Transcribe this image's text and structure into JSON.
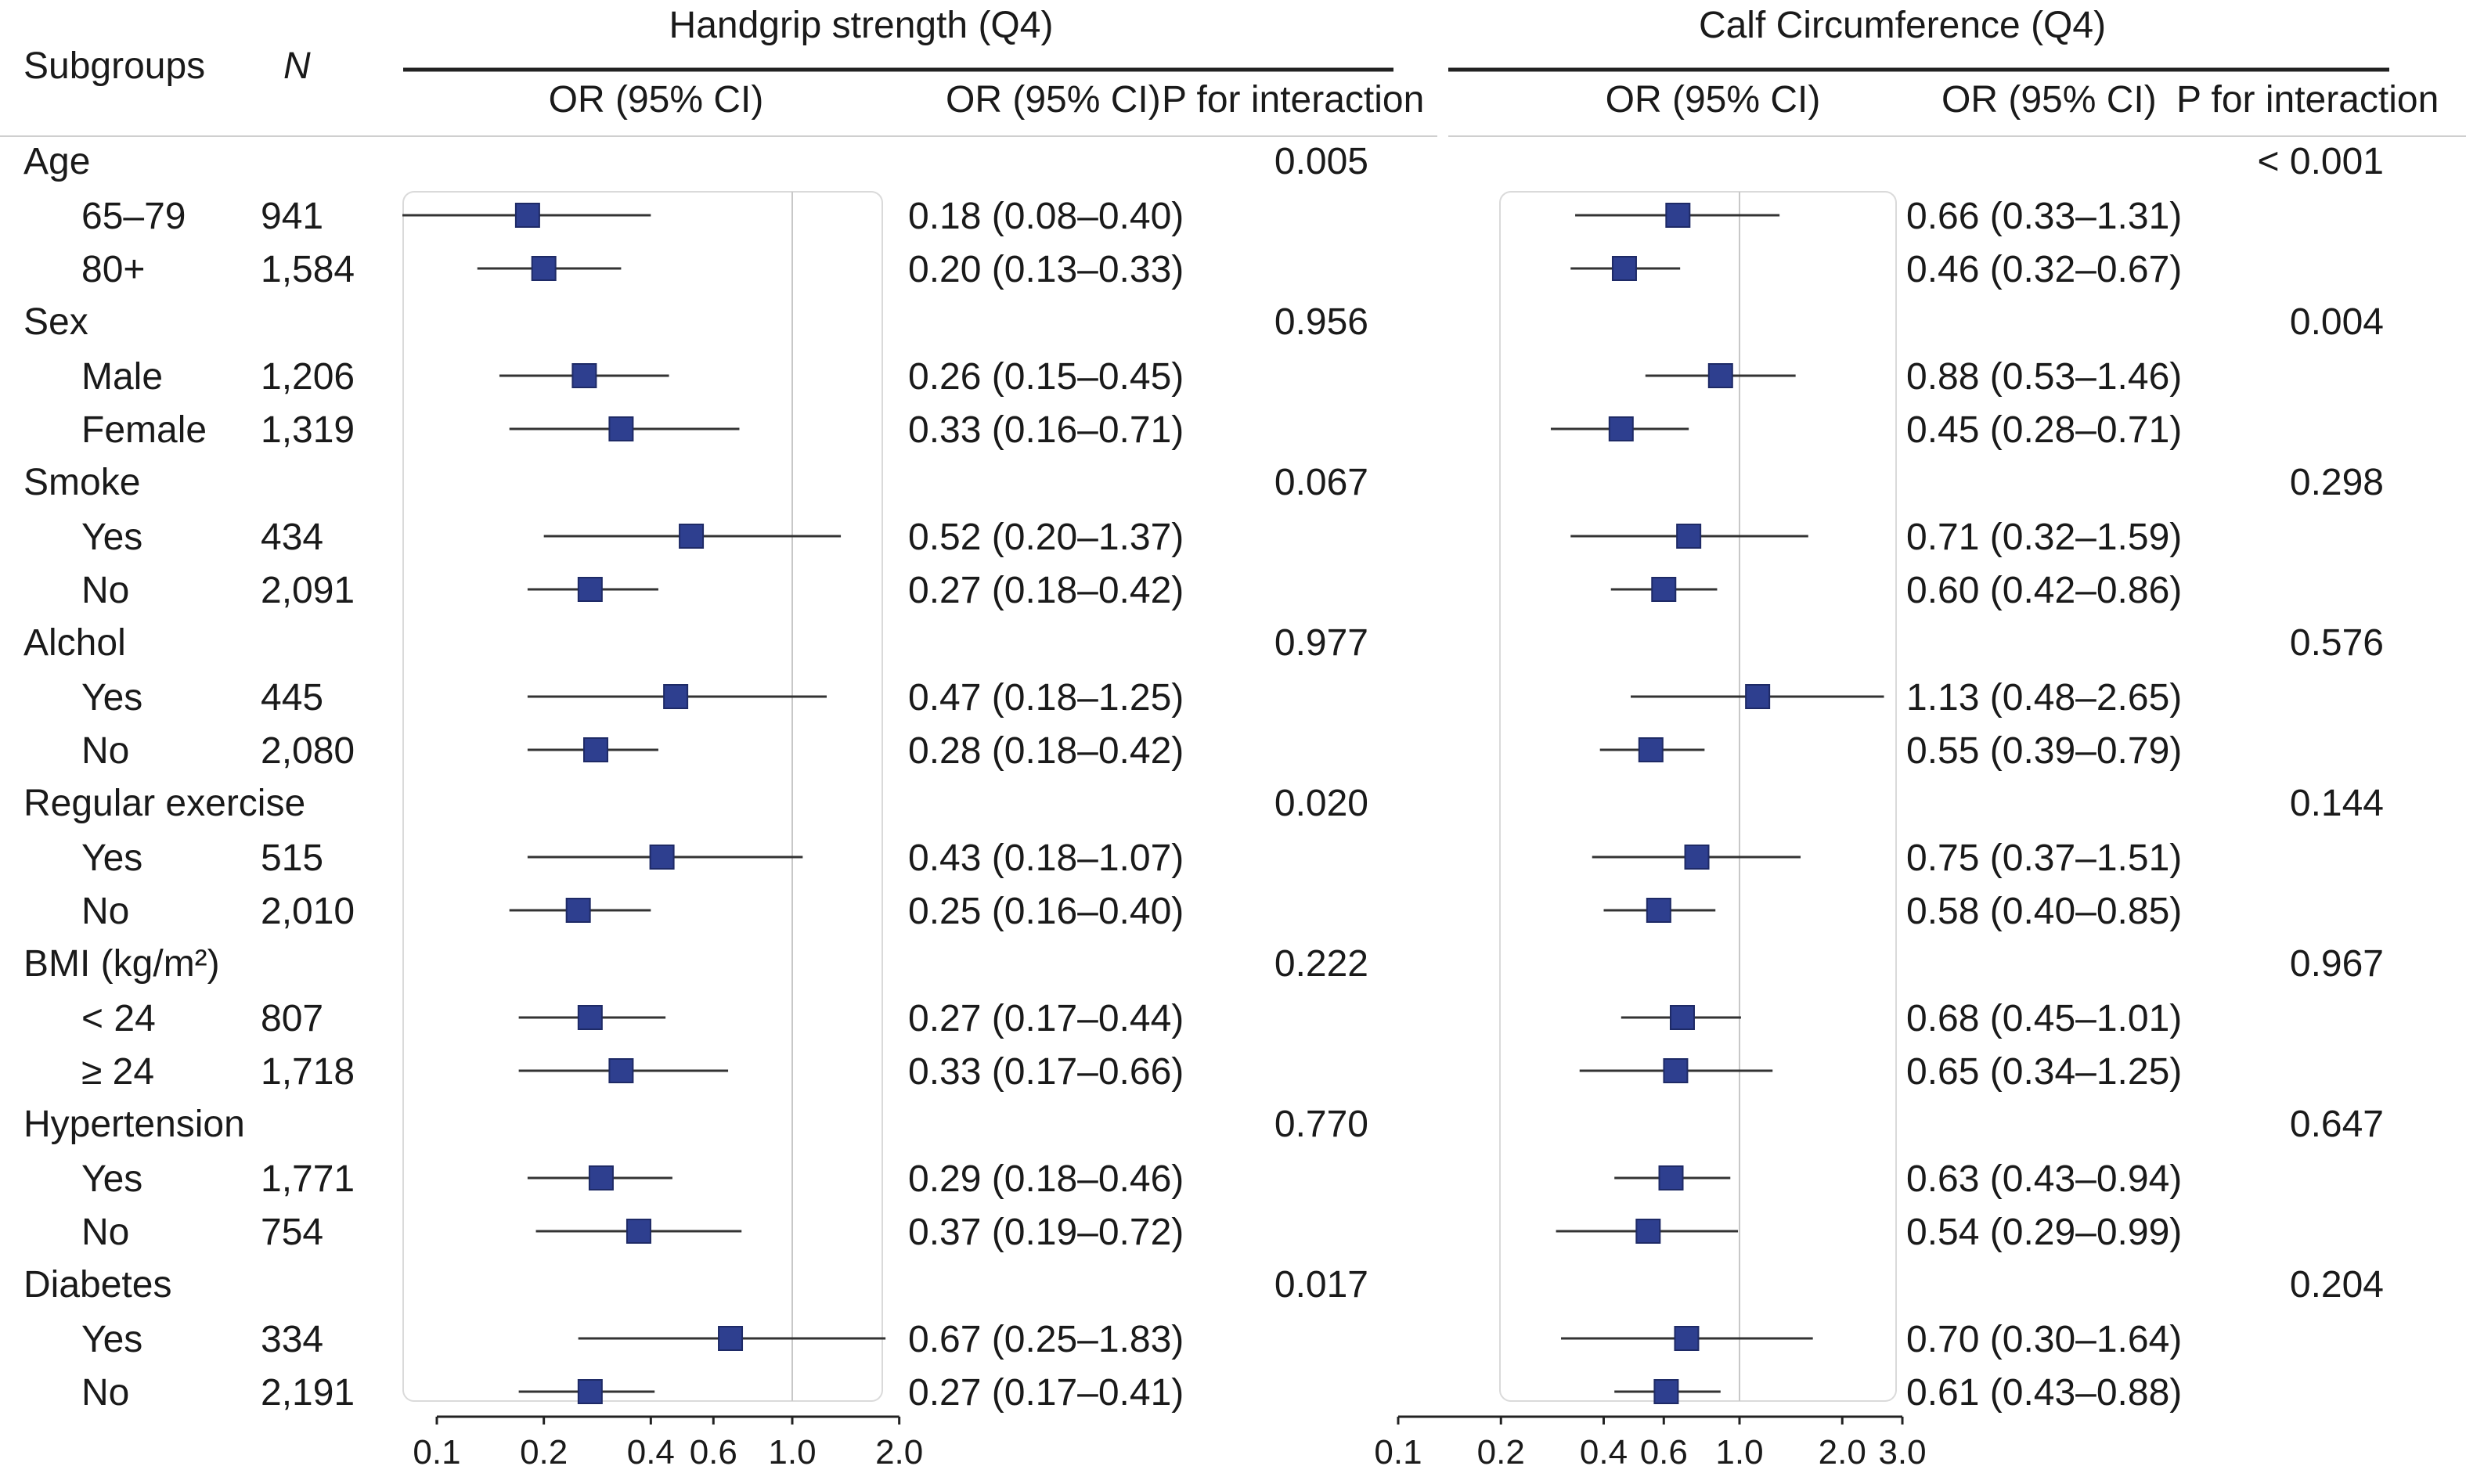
{
  "header": {
    "subgroups": "Subgroups",
    "n": "N",
    "panel_titles": [
      "Handgrip strength (Q4)",
      "Calf Circumference (Q4)"
    ],
    "or_ci_label": "OR (95% CI)",
    "p_label": "P for interaction"
  },
  "chart_data": [
    {
      "type": "forest",
      "title": "Handgrip strength (Q4)",
      "x_scale": "log",
      "reference_line": 1.0,
      "xticks": [
        0.1,
        0.2,
        0.4,
        0.6,
        1.0,
        2.0
      ],
      "xtick_labels": [
        "0.1",
        "0.2",
        "0.4",
        "0.6",
        "1.0",
        "2.0"
      ],
      "xlim": [
        0.09,
        2.0
      ],
      "marker_color": "#2e3f8f",
      "groups": [
        {
          "label": "Age",
          "p_interaction": "0.005",
          "subgroups": [
            {
              "label": "65–79",
              "n": "941",
              "or": 0.18,
              "lo": 0.08,
              "hi": 0.4,
              "text": "0.18 (0.08–0.40)"
            },
            {
              "label": "80+",
              "n": "1,584",
              "or": 0.2,
              "lo": 0.13,
              "hi": 0.33,
              "text": "0.20 (0.13–0.33)"
            }
          ]
        },
        {
          "label": "Sex",
          "p_interaction": "0.956",
          "subgroups": [
            {
              "label": "Male",
              "n": "1,206",
              "or": 0.26,
              "lo": 0.15,
              "hi": 0.45,
              "text": "0.26 (0.15–0.45)"
            },
            {
              "label": "Female",
              "n": "1,319",
              "or": 0.33,
              "lo": 0.16,
              "hi": 0.71,
              "text": "0.33 (0.16–0.71)"
            }
          ]
        },
        {
          "label": "Smoke",
          "p_interaction": "0.067",
          "subgroups": [
            {
              "label": "Yes",
              "n": "434",
              "or": 0.52,
              "lo": 0.2,
              "hi": 1.37,
              "text": "0.52 (0.20–1.37)"
            },
            {
              "label": "No",
              "n": "2,091",
              "or": 0.27,
              "lo": 0.18,
              "hi": 0.42,
              "text": "0.27 (0.18–0.42)"
            }
          ]
        },
        {
          "label": "Alchol",
          "p_interaction": "0.977",
          "subgroups": [
            {
              "label": "Yes",
              "n": "445",
              "or": 0.47,
              "lo": 0.18,
              "hi": 1.25,
              "text": "0.47 (0.18–1.25)"
            },
            {
              "label": "No",
              "n": "2,080",
              "or": 0.28,
              "lo": 0.18,
              "hi": 0.42,
              "text": "0.28 (0.18–0.42)"
            }
          ]
        },
        {
          "label": "Regular exercise",
          "p_interaction": "0.020",
          "subgroups": [
            {
              "label": "Yes",
              "n": "515",
              "or": 0.43,
              "lo": 0.18,
              "hi": 1.07,
              "text": "0.43 (0.18–1.07)"
            },
            {
              "label": "No",
              "n": "2,010",
              "or": 0.25,
              "lo": 0.16,
              "hi": 0.4,
              "text": "0.25 (0.16–0.40)"
            }
          ]
        },
        {
          "label": "BMI (kg/m²)",
          "p_interaction": "0.222",
          "subgroups": [
            {
              "label": "< 24",
              "n": "807",
              "or": 0.27,
              "lo": 0.17,
              "hi": 0.44,
              "text": "0.27 (0.17–0.44)"
            },
            {
              "label": "≥ 24",
              "n": "1,718",
              "or": 0.33,
              "lo": 0.17,
              "hi": 0.66,
              "text": "0.33 (0.17–0.66)"
            }
          ]
        },
        {
          "label": "Hypertension",
          "p_interaction": "0.770",
          "subgroups": [
            {
              "label": "Yes",
              "n": "1,771",
              "or": 0.29,
              "lo": 0.18,
              "hi": 0.46,
              "text": "0.29 (0.18–0.46)"
            },
            {
              "label": "No",
              "n": "754",
              "or": 0.37,
              "lo": 0.19,
              "hi": 0.72,
              "text": "0.37 (0.19–0.72)"
            }
          ]
        },
        {
          "label": "Diabetes",
          "p_interaction": "0.017",
          "subgroups": [
            {
              "label": "Yes",
              "n": "334",
              "or": 0.67,
              "lo": 0.25,
              "hi": 1.83,
              "text": "0.67 (0.25–1.83)"
            },
            {
              "label": "No",
              "n": "2,191",
              "or": 0.27,
              "lo": 0.17,
              "hi": 0.41,
              "text": "0.27 (0.17–0.41)"
            }
          ]
        }
      ]
    },
    {
      "type": "forest",
      "title": "Calf Circumference (Q4)",
      "x_scale": "log",
      "reference_line": 1.0,
      "xticks": [
        0.1,
        0.2,
        0.4,
        0.6,
        1.0,
        2.0,
        3.0
      ],
      "xtick_labels": [
        "0.1",
        "0.2",
        "0.4",
        "0.6",
        "1.0",
        "2.0",
        "3.0"
      ],
      "xlim": [
        0.1,
        3.0
      ],
      "marker_color": "#2e3f8f",
      "groups": [
        {
          "label": "Age",
          "p_interaction": "< 0.001",
          "subgroups": [
            {
              "label": "65–79",
              "n": "941",
              "or": 0.66,
              "lo": 0.33,
              "hi": 1.31,
              "text": "0.66 (0.33–1.31)"
            },
            {
              "label": "80+",
              "n": "1,584",
              "or": 0.46,
              "lo": 0.32,
              "hi": 0.67,
              "text": "0.46 (0.32–0.67)"
            }
          ]
        },
        {
          "label": "Sex",
          "p_interaction": "0.004",
          "subgroups": [
            {
              "label": "Male",
              "n": "1,206",
              "or": 0.88,
              "lo": 0.53,
              "hi": 1.46,
              "text": "0.88 (0.53–1.46)"
            },
            {
              "label": "Female",
              "n": "1,319",
              "or": 0.45,
              "lo": 0.28,
              "hi": 0.71,
              "text": "0.45 (0.28–0.71)"
            }
          ]
        },
        {
          "label": "Smoke",
          "p_interaction": "0.298",
          "subgroups": [
            {
              "label": "Yes",
              "n": "434",
              "or": 0.71,
              "lo": 0.32,
              "hi": 1.59,
              "text": "0.71 (0.32–1.59)"
            },
            {
              "label": "No",
              "n": "2,091",
              "or": 0.6,
              "lo": 0.42,
              "hi": 0.86,
              "text": "0.60 (0.42–0.86)"
            }
          ]
        },
        {
          "label": "Alchol",
          "p_interaction": "0.576",
          "subgroups": [
            {
              "label": "Yes",
              "n": "445",
              "or": 1.13,
              "lo": 0.48,
              "hi": 2.65,
              "text": "1.13 (0.48–2.65)"
            },
            {
              "label": "No",
              "n": "2,080",
              "or": 0.55,
              "lo": 0.39,
              "hi": 0.79,
              "text": "0.55 (0.39–0.79)"
            }
          ]
        },
        {
          "label": "Regular exercise",
          "p_interaction": "0.144",
          "subgroups": [
            {
              "label": "Yes",
              "n": "515",
              "or": 0.75,
              "lo": 0.37,
              "hi": 1.51,
              "text": "0.75 (0.37–1.51)"
            },
            {
              "label": "No",
              "n": "2,010",
              "or": 0.58,
              "lo": 0.4,
              "hi": 0.85,
              "text": "0.58 (0.40–0.85)"
            }
          ]
        },
        {
          "label": "BMI (kg/m²)",
          "p_interaction": "0.967",
          "subgroups": [
            {
              "label": "< 24",
              "n": "807",
              "or": 0.68,
              "lo": 0.45,
              "hi": 1.01,
              "text": "0.68 (0.45–1.01)"
            },
            {
              "label": "≥ 24",
              "n": "1,718",
              "or": 0.65,
              "lo": 0.34,
              "hi": 1.25,
              "text": "0.65 (0.34–1.25)"
            }
          ]
        },
        {
          "label": "Hypertension",
          "p_interaction": "0.647",
          "subgroups": [
            {
              "label": "Yes",
              "n": "1,771",
              "or": 0.63,
              "lo": 0.43,
              "hi": 0.94,
              "text": "0.63 (0.43–0.94)"
            },
            {
              "label": "No",
              "n": "754",
              "or": 0.54,
              "lo": 0.29,
              "hi": 0.99,
              "text": "0.54 (0.29–0.99)"
            }
          ]
        },
        {
          "label": "Diabetes",
          "p_interaction": "0.204",
          "subgroups": [
            {
              "label": "Yes",
              "n": "334",
              "or": 0.7,
              "lo": 0.3,
              "hi": 1.64,
              "text": "0.70 (0.30–1.64)"
            },
            {
              "label": "No",
              "n": "2,191",
              "or": 0.61,
              "lo": 0.43,
              "hi": 0.88,
              "text": "0.61 (0.43–0.88)"
            }
          ]
        }
      ]
    }
  ]
}
